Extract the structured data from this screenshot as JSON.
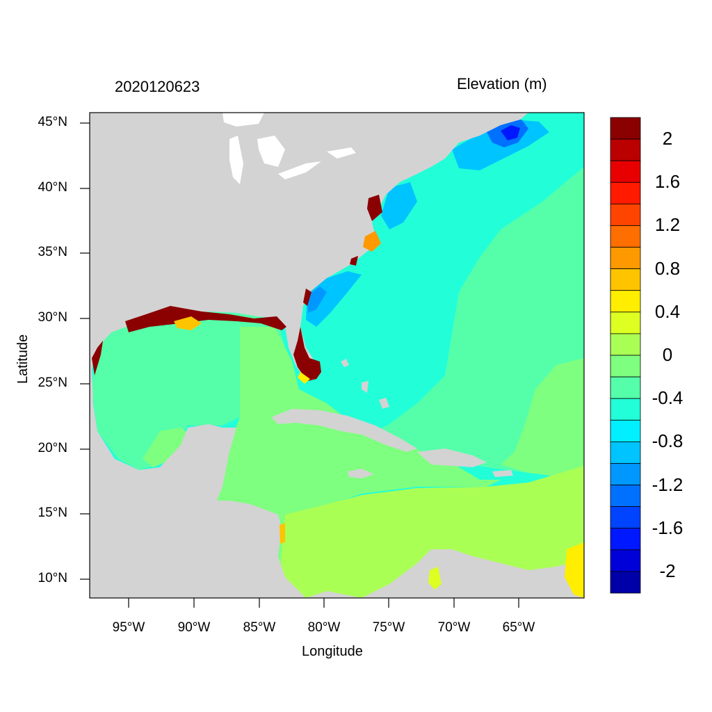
{
  "title_left": "2020120623",
  "title_right": "Elevation (m)",
  "x_axis": {
    "title": "Longitude",
    "ticks": [
      "95°W",
      "90°W",
      "85°W",
      "80°W",
      "75°W",
      "70°W",
      "65°W"
    ],
    "tick_values": [
      -95,
      -90,
      -85,
      -80,
      -75,
      -70,
      -65
    ],
    "range": [
      -98,
      -60
    ]
  },
  "y_axis": {
    "title": "Latitude",
    "ticks": [
      "45°N",
      "40°N",
      "35°N",
      "30°N",
      "25°N",
      "20°N",
      "15°N",
      "10°N"
    ],
    "tick_values": [
      45,
      40,
      35,
      30,
      25,
      20,
      15,
      10
    ],
    "range": [
      8.5,
      46
    ]
  },
  "colorbar": {
    "labels": [
      "2",
      "1.6",
      "1.2",
      "0.8",
      "0.4",
      "0",
      "-0.4",
      "-0.8",
      "-1.2",
      "-1.6",
      "-2"
    ],
    "label_values": [
      2,
      1.6,
      1.2,
      0.8,
      0.4,
      0,
      -0.4,
      -0.8,
      -1.2,
      -1.6,
      -2
    ],
    "colors": [
      "#8b0000",
      "#bb0000",
      "#e80000",
      "#ff1a00",
      "#ff4400",
      "#ff6e00",
      "#ff9900",
      "#ffc400",
      "#ffee00",
      "#ddff22",
      "#aaff55",
      "#7fff7f",
      "#55ffaa",
      "#22ffd8",
      "#00f0ff",
      "#00c4ff",
      "#0098ff",
      "#0070ff",
      "#0044ff",
      "#0018ff",
      "#0000d8",
      "#0000a8"
    ]
  },
  "colors": {
    "land": "#d3d3d3",
    "lakes": "#ffffff"
  }
}
